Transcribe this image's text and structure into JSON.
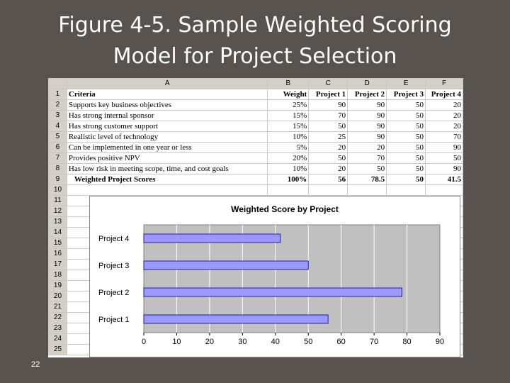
{
  "slide": {
    "title_line1": "Figure 4-5. Sample Weighted Scoring",
    "title_line2": "Model for Project Selection",
    "page_number": "22"
  },
  "sheet": {
    "column_headers": [
      "A",
      "B",
      "C",
      "D",
      "E",
      "F"
    ],
    "row_numbers": [
      "1",
      "2",
      "3",
      "4",
      "5",
      "6",
      "7",
      "8",
      "9",
      "10",
      "11",
      "12",
      "13",
      "14",
      "15",
      "16",
      "17",
      "18",
      "19",
      "20",
      "21",
      "22",
      "23",
      "24",
      "25"
    ],
    "header_row": [
      "Criteria",
      "Weight",
      "Project 1",
      "Project 2",
      "Project 3",
      "Project 4"
    ],
    "rows": [
      [
        "Supports key business objectives",
        "25%",
        "90",
        "90",
        "50",
        "20"
      ],
      [
        "Has strong internal sponsor",
        "15%",
        "70",
        "90",
        "50",
        "20"
      ],
      [
        "Has strong customer support",
        "15%",
        "50",
        "90",
        "50",
        "20"
      ],
      [
        "Realistic level of technology",
        "10%",
        "25",
        "90",
        "50",
        "70"
      ],
      [
        "Can be implemented in one year or less",
        "5%",
        "20",
        "20",
        "50",
        "90"
      ],
      [
        "Provides positive NPV",
        "20%",
        "50",
        "70",
        "50",
        "50"
      ],
      [
        "Has low risk in meeting scope, time, and cost goals",
        "10%",
        "20",
        "50",
        "50",
        "90"
      ]
    ],
    "total_row": [
      "Weighted Project Scores",
      "100%",
      "56",
      "78.5",
      "50",
      "41.5"
    ]
  },
  "chart_data": {
    "type": "bar",
    "orientation": "horizontal",
    "title": "Weighted Score by Project",
    "categories": [
      "Project 4",
      "Project 3",
      "Project 2",
      "Project 1"
    ],
    "values": [
      41.5,
      50,
      78.5,
      56
    ],
    "xlim": [
      0,
      90
    ],
    "xticks": [
      "0",
      "10",
      "20",
      "30",
      "40",
      "50",
      "60",
      "70",
      "80",
      "90"
    ],
    "grid": true,
    "plot_background": "#c0c0c0",
    "bar_color": "#9999ff"
  }
}
